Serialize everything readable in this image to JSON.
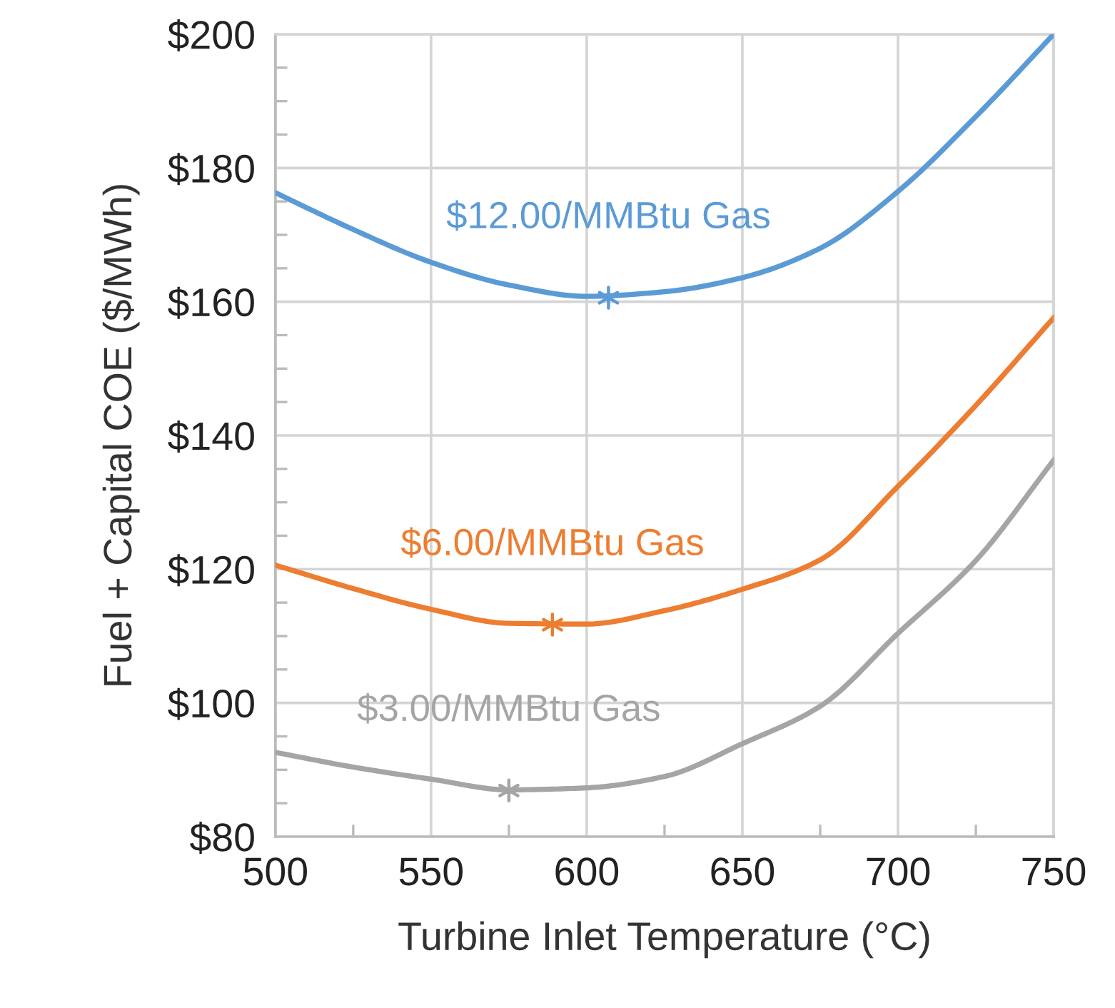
{
  "chart_data": {
    "type": "line",
    "xlabel": "Turbine Inlet Temperature (°C)",
    "ylabel": "Fuel + Capital COE ($/MWh)",
    "x": [
      500,
      525,
      550,
      575,
      600,
      625,
      650,
      675,
      700,
      725,
      750
    ],
    "series": [
      {
        "name": "$12.00/MMBtu Gas",
        "color": "#5b9bd5",
        "values": [
          176.3,
          170.8,
          165.9,
          162.5,
          160.8,
          161.5,
          163.6,
          168.0,
          176.5,
          187.7,
          200
        ]
      },
      {
        "type": "scatter",
        "color": "#5b9bd5",
        "x": [
          607
        ],
        "values": [
          160.6
        ],
        "marker": "cross"
      },
      {
        "name": "$6.00/MMBtu Gas",
        "color": "#ed7d31",
        "values": [
          120.6,
          117.1,
          114.0,
          111.9,
          111.8,
          113.8,
          117.0,
          121.4,
          132.4,
          144.5,
          157.6
        ]
      },
      {
        "type": "scatter",
        "color": "#ed7d31",
        "x": [
          589
        ],
        "values": [
          111.7
        ],
        "marker": "cross"
      },
      {
        "name": "$3.00/MMBtu Gas",
        "color": "#a5a5a5",
        "values": [
          92.6,
          90.4,
          88.6,
          87.0,
          87.3,
          89.0,
          93.9,
          99.5,
          110.4,
          121.3,
          136.3
        ]
      },
      {
        "type": "scatter",
        "color": "#a5a5a5",
        "x": [
          575
        ],
        "values": [
          86.9
        ],
        "marker": "cross"
      }
    ],
    "xlim": [
      500,
      750
    ],
    "xticks": [
      500,
      550,
      600,
      650,
      700,
      750
    ],
    "ylim": [
      80,
      200
    ],
    "yticks": [
      {
        "value": 80,
        "label": "$80"
      },
      {
        "value": 100,
        "label": "$100"
      },
      {
        "value": 120,
        "label": "$120"
      },
      {
        "value": 140,
        "label": "$140"
      },
      {
        "value": 160,
        "label": "$160"
      },
      {
        "value": 180,
        "label": "$180"
      },
      {
        "value": 200,
        "label": "$200"
      }
    ],
    "grid": true,
    "marker": "none",
    "legend": false
  }
}
